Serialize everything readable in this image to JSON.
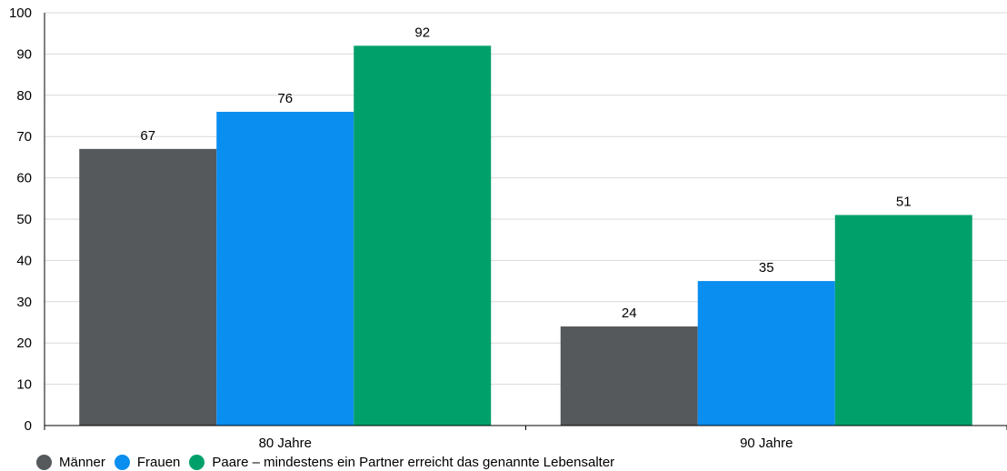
{
  "chart_data": {
    "type": "bar",
    "categories": [
      "80 Jahre",
      "90 Jahre"
    ],
    "series": [
      {
        "name": "Männer",
        "values": [
          67,
          24
        ],
        "color": "#55595c"
      },
      {
        "name": "Frauen",
        "values": [
          76,
          35
        ],
        "color": "#0a8ef0"
      },
      {
        "name": "Paare – mindestens ein Partner erreicht das genannte Lebensalter",
        "values": [
          92,
          51
        ],
        "color": "#00a06b"
      }
    ],
    "ylim": [
      0,
      100
    ],
    "yticks": [
      0,
      10,
      20,
      30,
      40,
      50,
      60,
      70,
      80,
      90,
      100
    ],
    "grid": true,
    "legend_position": "bottom-left",
    "data_labels": true
  }
}
